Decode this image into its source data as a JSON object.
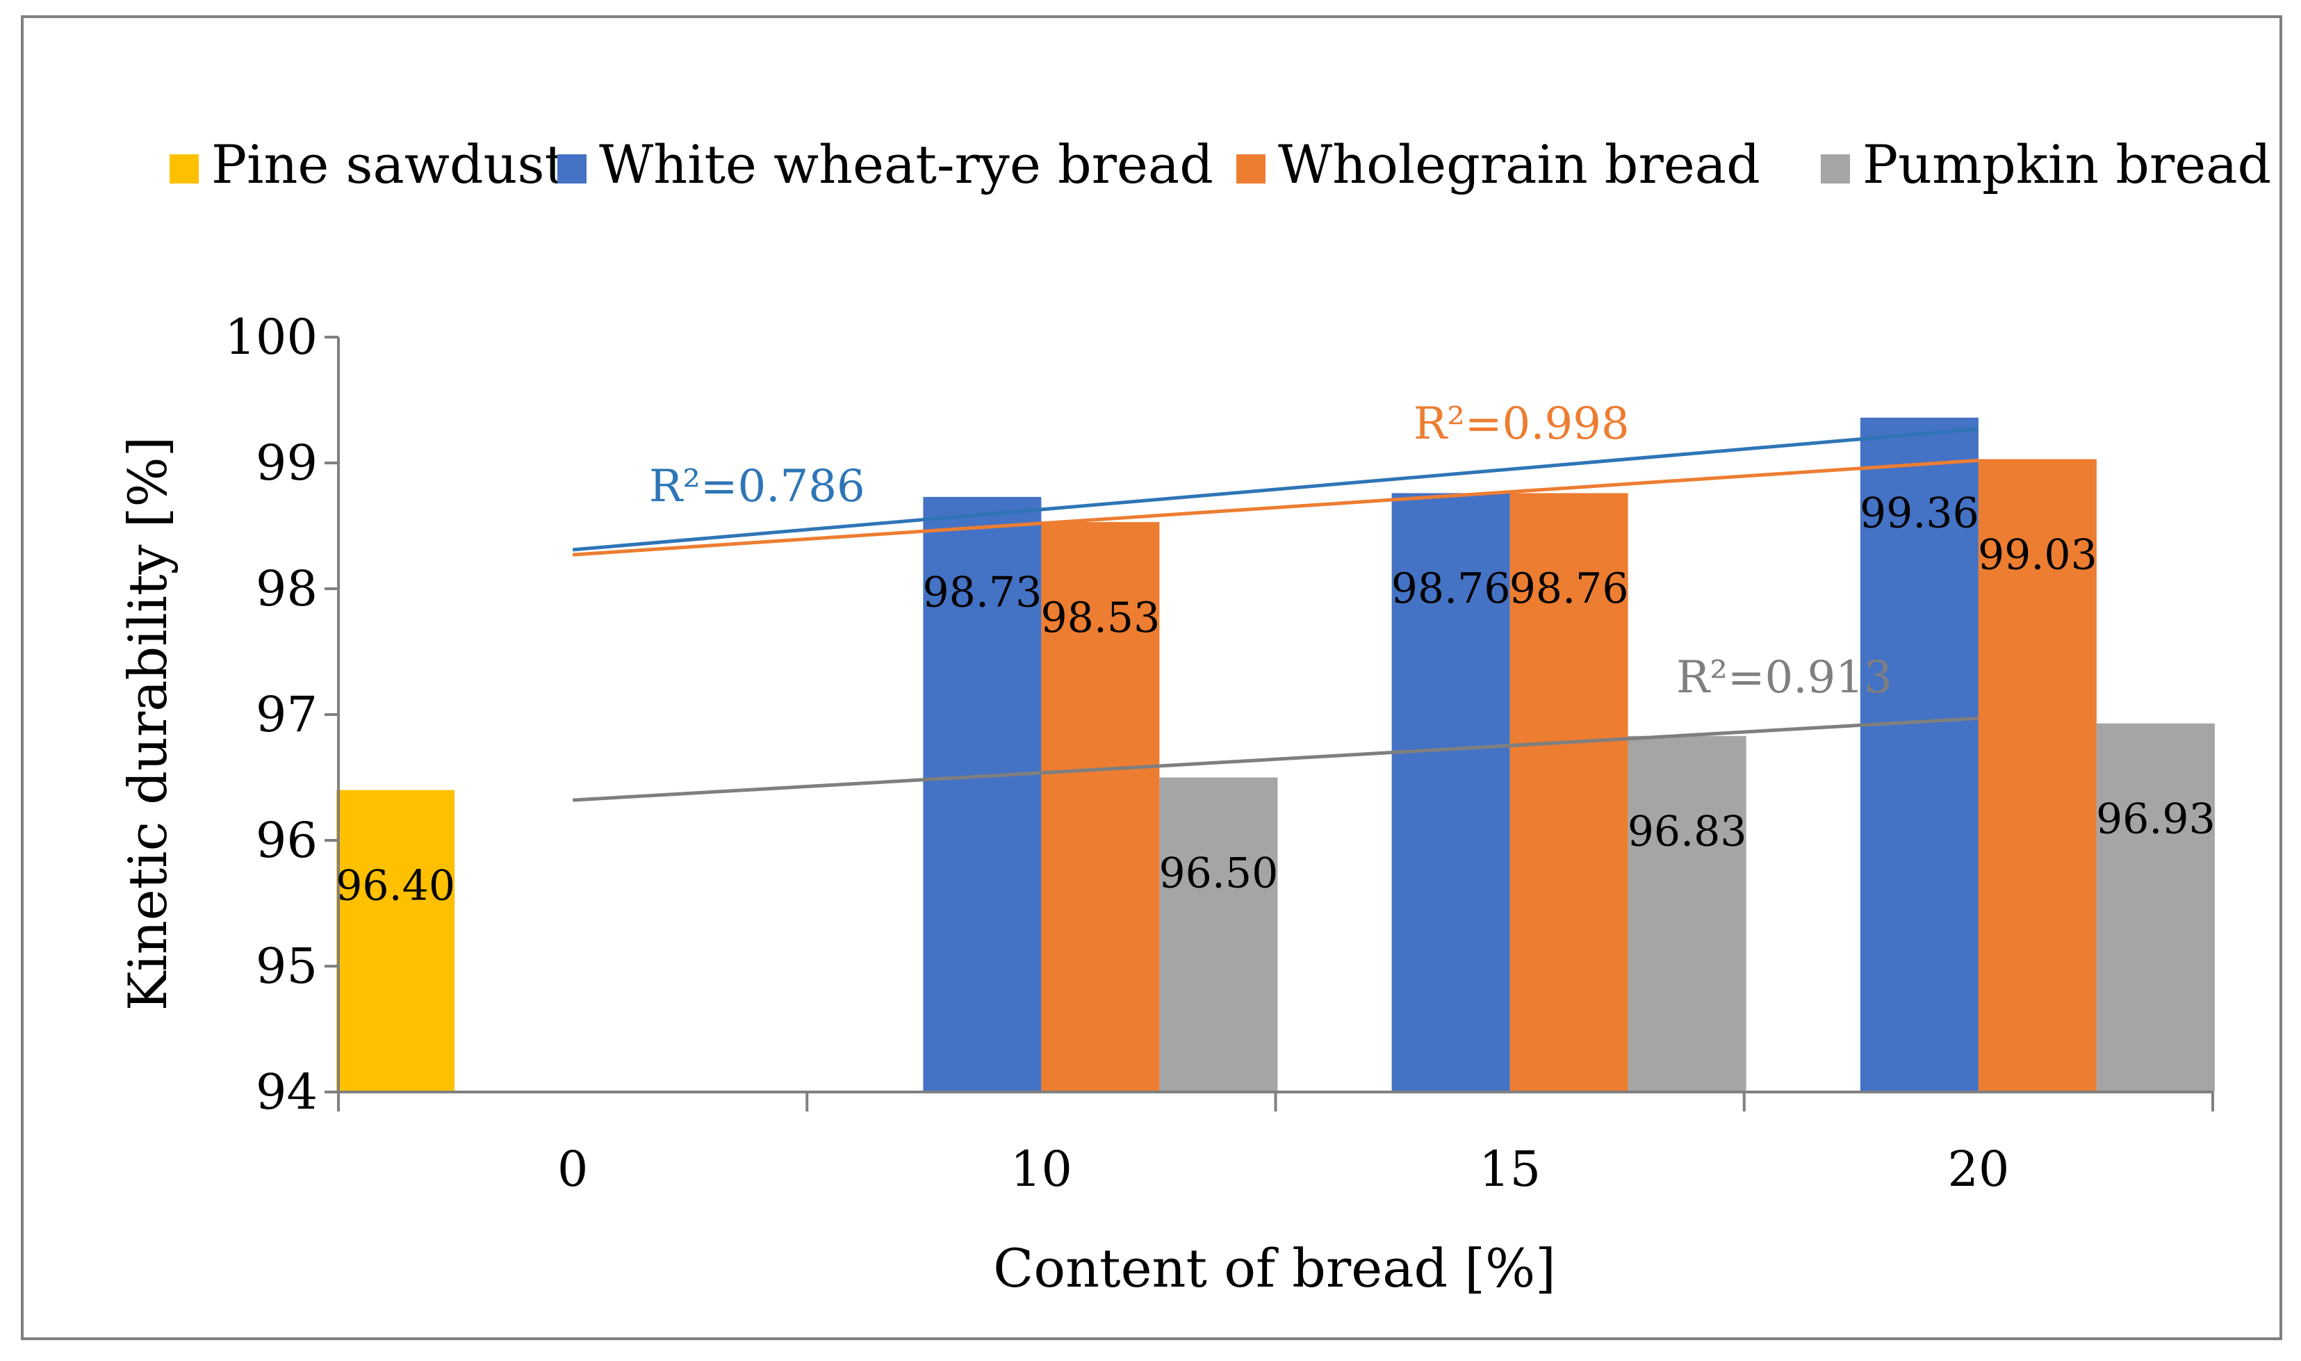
{
  "chart_data": {
    "type": "bar",
    "categories": [
      "0",
      "10",
      "15",
      "20"
    ],
    "xlabel": "Content of bread  [%]",
    "ylabel": "Kinetic durability   [%]",
    "ylim": [
      94,
      100
    ],
    "yticks": [
      "94",
      "95",
      "96",
      "97",
      "98",
      "99",
      "100"
    ],
    "grid": false,
    "legend_position": "top",
    "series": [
      {
        "name": "Pine sawdust",
        "color": "#FFC000",
        "values": [
          96.4,
          null,
          null,
          null
        ],
        "labels": [
          "96.40",
          "",
          "",
          ""
        ]
      },
      {
        "name": "White wheat-rye bread",
        "color": "#4472C4",
        "values": [
          null,
          98.73,
          98.76,
          99.36
        ],
        "labels": [
          "",
          "98.73",
          "98.76",
          "99.36"
        ]
      },
      {
        "name": "Wholegrain bread",
        "color": "#ED7D31",
        "values": [
          null,
          98.53,
          98.76,
          99.03
        ],
        "labels": [
          "",
          "98.53",
          "98.76",
          "99.03"
        ]
      },
      {
        "name": "Pumpkin bread",
        "color": "#A5A5A5",
        "values": [
          null,
          96.5,
          96.83,
          96.93
        ],
        "labels": [
          "",
          "96.50",
          "96.83",
          "96.93"
        ]
      }
    ],
    "trendlines": [
      {
        "series": "White wheat-rye bread",
        "color": "#2E75B6",
        "start": 98.31,
        "end": 99.27,
        "label": "R²=0.786"
      },
      {
        "series": "Wholegrain bread",
        "color": "#ED7D31",
        "start": 98.27,
        "end": 99.02,
        "label": "R²=0.998"
      },
      {
        "series": "Pumpkin bread",
        "color": "#7F7F7F",
        "start": 96.32,
        "end": 96.97,
        "label": "R²=0.913"
      }
    ]
  }
}
